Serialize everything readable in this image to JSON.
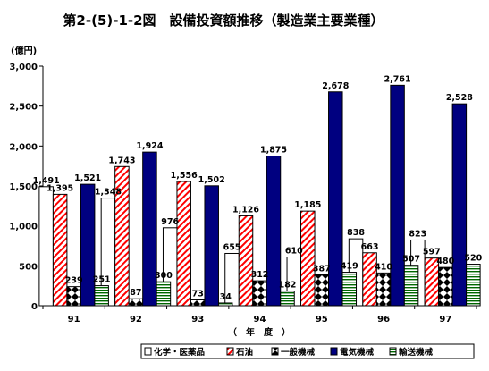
{
  "chart_data": {
    "type": "bar",
    "title": "第2-(5)-1-2図　設備投資額推移（製造業主要業種）",
    "unit_label": "(億円)",
    "xlabel": "（　年　度　）",
    "categories": [
      "91",
      "92",
      "93",
      "94",
      "95",
      "96",
      "97"
    ],
    "ylim": [
      0,
      3000
    ],
    "yticks": [
      0,
      500,
      1000,
      1500,
      2000,
      2500,
      3000
    ],
    "ytick_labels": [
      "0",
      "500",
      "1,000",
      "1,500",
      "2,000",
      "2,500",
      "3,000"
    ],
    "grid": false,
    "legend_position": "bottom",
    "series": [
      {
        "name": "化学・医薬品",
        "pattern": "white",
        "values": [
          1491,
          1348,
          976,
          655,
          610,
          838,
          823
        ],
        "labels": [
          "1,491",
          "1,348",
          "976",
          "655",
          "610",
          "838",
          "823"
        ]
      },
      {
        "name": "石油",
        "pattern": "red-diagonal",
        "values": [
          1395,
          1743,
          1556,
          1126,
          1185,
          663,
          597
        ],
        "labels": [
          "1,395",
          "1,743",
          "1,556",
          "1,126",
          "1,185",
          "663",
          "597"
        ]
      },
      {
        "name": "一般機械",
        "pattern": "black-diamond",
        "values": [
          239,
          87,
          73,
          312,
          387,
          410,
          480
        ],
        "labels": [
          "239",
          "87",
          "73",
          "312",
          "387",
          "410",
          "480"
        ]
      },
      {
        "name": "電気機械",
        "pattern": "navy",
        "values": [
          1521,
          1924,
          1502,
          1875,
          2678,
          2761,
          2528
        ],
        "labels": [
          "1,521",
          "1,924",
          "1,502",
          "1,875",
          "2,678",
          "2,761",
          "2,528"
        ]
      },
      {
        "name": "輸送機械",
        "pattern": "green-horizontal",
        "values": [
          251,
          300,
          34,
          182,
          419,
          507,
          520
        ],
        "labels": [
          "251",
          "300",
          "34",
          "182",
          "419",
          "507",
          "520"
        ]
      }
    ],
    "colors": {
      "navy": "#000080",
      "red": "#ff0000",
      "green": "#006600",
      "black": "#000000"
    }
  }
}
